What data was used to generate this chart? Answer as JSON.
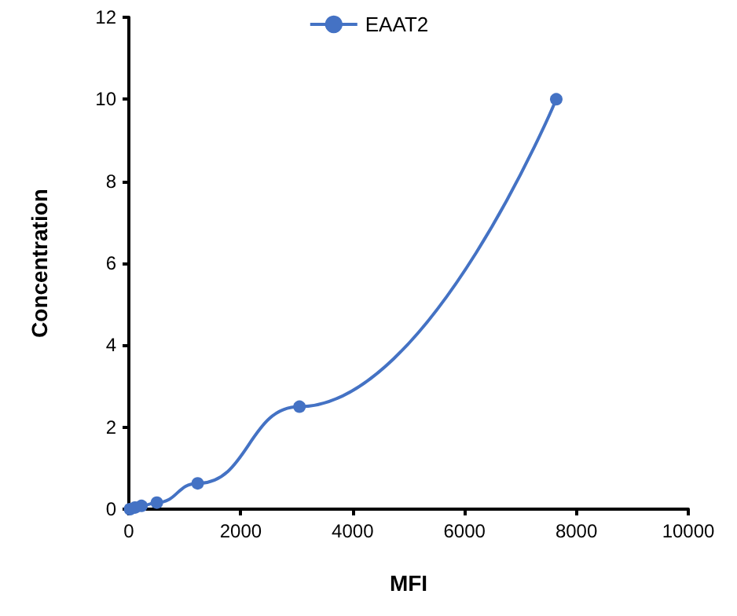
{
  "chart_data": {
    "type": "line",
    "xlabel": "MFI",
    "ylabel": "Concentration",
    "x": [
      20,
      110,
      225,
      500,
      1230,
      3050,
      7640
    ],
    "series": [
      {
        "name": "EAAT2",
        "color": "#4472c4",
        "values": [
          0,
          0.04,
          0.08,
          0.16,
          0.63,
          2.5,
          10
        ]
      }
    ],
    "xlim": [
      0,
      10000
    ],
    "xticks": [
      0,
      2000,
      4000,
      6000,
      8000,
      10000
    ],
    "ylim": [
      0,
      12
    ],
    "yticks": [
      0,
      2,
      4,
      6,
      8,
      10,
      12
    ],
    "grid": false,
    "legend": "top",
    "marker": "circle",
    "line_style": "solid"
  }
}
